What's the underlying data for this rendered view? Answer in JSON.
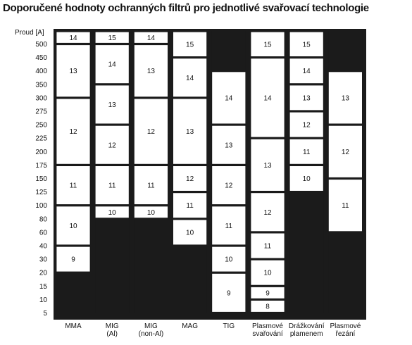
{
  "chart_data": {
    "type": "table",
    "title": "Doporučené hodnoty ochranných filtrů pro jednotlivé svařovací technologie",
    "ylabel": "Proud [A]",
    "y_ticks": [
      "5",
      "10",
      "15",
      "20",
      "30",
      "40",
      "60",
      "80",
      "100",
      "125",
      "150",
      "175",
      "200",
      "225",
      "250",
      "275",
      "300",
      "350",
      "400",
      "450",
      "500"
    ],
    "ylim": [
      "5",
      "500"
    ],
    "categories": [
      {
        "label": [
          "MMA"
        ],
        "segments": [
          {
            "from": "5",
            "to": "20",
            "shade": null
          },
          {
            "from": "20",
            "to": "40",
            "shade": "9"
          },
          {
            "from": "40",
            "to": "100",
            "shade": "10"
          },
          {
            "from": "100",
            "to": "175",
            "shade": "11"
          },
          {
            "from": "175",
            "to": "300",
            "shade": "12"
          },
          {
            "from": "300",
            "to": "500",
            "shade": "13"
          },
          {
            "from": "500",
            "to": "top",
            "shade": "14"
          }
        ]
      },
      {
        "label": [
          "MIG",
          "(Al)"
        ],
        "segments": [
          {
            "from": "5",
            "to": "80",
            "shade": null
          },
          {
            "from": "80",
            "to": "100",
            "shade": "10"
          },
          {
            "from": "100",
            "to": "175",
            "shade": "11"
          },
          {
            "from": "175",
            "to": "250",
            "shade": "12"
          },
          {
            "from": "250",
            "to": "350",
            "shade": "13"
          },
          {
            "from": "350",
            "to": "500",
            "shade": "14"
          },
          {
            "from": "500",
            "to": "top",
            "shade": "15"
          }
        ]
      },
      {
        "label": [
          "MIG",
          "(non-Al)"
        ],
        "segments": [
          {
            "from": "5",
            "to": "80",
            "shade": null
          },
          {
            "from": "80",
            "to": "100",
            "shade": "10"
          },
          {
            "from": "100",
            "to": "175",
            "shade": "11"
          },
          {
            "from": "175",
            "to": "300",
            "shade": "12"
          },
          {
            "from": "300",
            "to": "500",
            "shade": "13"
          },
          {
            "from": "500",
            "to": "top",
            "shade": "14"
          }
        ]
      },
      {
        "label": [
          "MAG"
        ],
        "segments": [
          {
            "from": "5",
            "to": "40",
            "shade": null
          },
          {
            "from": "40",
            "to": "80",
            "shade": "10"
          },
          {
            "from": "80",
            "to": "125",
            "shade": "11"
          },
          {
            "from": "125",
            "to": "175",
            "shade": "12"
          },
          {
            "from": "175",
            "to": "300",
            "shade": "13"
          },
          {
            "from": "300",
            "to": "450",
            "shade": "14"
          },
          {
            "from": "450",
            "to": "top",
            "shade": "15"
          }
        ]
      },
      {
        "label": [
          "TIG"
        ],
        "segments": [
          {
            "from": "5",
            "to": "20",
            "shade": "9"
          },
          {
            "from": "20",
            "to": "40",
            "shade": "10"
          },
          {
            "from": "40",
            "to": "100",
            "shade": "11"
          },
          {
            "from": "100",
            "to": "175",
            "shade": "12"
          },
          {
            "from": "175",
            "to": "250",
            "shade": "13"
          },
          {
            "from": "250",
            "to": "400",
            "shade": "14"
          },
          {
            "from": "400",
            "to": "top",
            "shade": null
          }
        ]
      },
      {
        "label": [
          "Plasmové",
          "svařování"
        ],
        "segments": [
          {
            "from": "5",
            "to": "10",
            "shade": "8"
          },
          {
            "from": "10",
            "to": "15",
            "shade": "9"
          },
          {
            "from": "15",
            "to": "30",
            "shade": "10"
          },
          {
            "from": "30",
            "to": "60",
            "shade": "11"
          },
          {
            "from": "60",
            "to": "125",
            "shade": "12"
          },
          {
            "from": "125",
            "to": "225",
            "shade": "13"
          },
          {
            "from": "225",
            "to": "450",
            "shade": "14"
          },
          {
            "from": "450",
            "to": "top",
            "shade": "15"
          }
        ]
      },
      {
        "label": [
          "Drážkování",
          "plamenem"
        ],
        "segments": [
          {
            "from": "5",
            "to": "125",
            "shade": null
          },
          {
            "from": "125",
            "to": "175",
            "shade": "10"
          },
          {
            "from": "175",
            "to": "225",
            "shade": "11"
          },
          {
            "from": "225",
            "to": "275",
            "shade": "12"
          },
          {
            "from": "275",
            "to": "350",
            "shade": "13"
          },
          {
            "from": "350",
            "to": "450",
            "shade": "14"
          },
          {
            "from": "450",
            "to": "top",
            "shade": "15"
          }
        ]
      },
      {
        "label": [
          "Plasmové",
          "řezání"
        ],
        "segments": [
          {
            "from": "5",
            "to": "60",
            "shade": null
          },
          {
            "from": "60",
            "to": "150",
            "shade": "11"
          },
          {
            "from": "150",
            "to": "250",
            "shade": "12"
          },
          {
            "from": "250",
            "to": "400",
            "shade": "13"
          },
          {
            "from": "400",
            "to": "top",
            "shade": null
          }
        ]
      }
    ]
  }
}
